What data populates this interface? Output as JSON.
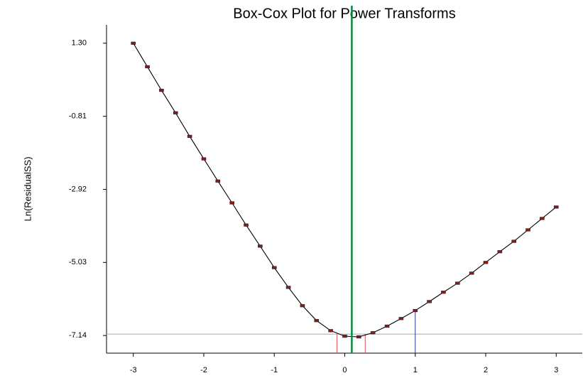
{
  "chart_data": {
    "type": "line",
    "title": "Box-Cox Plot for Power Transforms",
    "ylabel": "Ln(ResidualSS)",
    "x": [
      -3,
      -2.8,
      -2.6,
      -2.4,
      -2.2,
      -2,
      -1.8,
      -1.6,
      -1.4,
      -1.2,
      -1,
      -0.8,
      -0.6,
      -0.4,
      -0.2,
      0,
      0.2,
      0.4,
      0.6,
      0.8,
      1,
      1.2,
      1.4,
      1.6,
      1.8,
      2,
      2.2,
      2.4,
      2.6,
      2.8,
      3
    ],
    "values": [
      1.3,
      0.62,
      -0.06,
      -0.71,
      -1.39,
      -2.04,
      -2.68,
      -3.31,
      -3.95,
      -4.56,
      -5.18,
      -5.75,
      -6.28,
      -6.71,
      -7.0,
      -7.16,
      -7.18,
      -7.06,
      -6.87,
      -6.65,
      -6.42,
      -6.16,
      -5.89,
      -5.63,
      -5.34,
      -5.03,
      -4.72,
      -4.42,
      -4.09,
      -3.76,
      -3.43
    ],
    "color": "#000000",
    "marker_color": "#8b1a1a",
    "xlim": [
      -3.38,
      3.37
    ],
    "ylim": [
      -7.65,
      1.83
    ],
    "xticks": [
      -3,
      -2,
      -1,
      0,
      1,
      2,
      3
    ],
    "yticks": [
      {
        "value": 1.3,
        "label": "1.30"
      },
      -0.81,
      -2.92,
      -5.03,
      -7.14
    ],
    "optimal_lambda": 0.1,
    "optimal_color": "#008c3a",
    "lambda_ci": [
      -0.11,
      0.29
    ],
    "ci_color": "#e05050",
    "current_lambda": 1,
    "current_color": "#2a3a9a",
    "threshold": -7.1,
    "threshold_color": "#b0b0b0"
  }
}
